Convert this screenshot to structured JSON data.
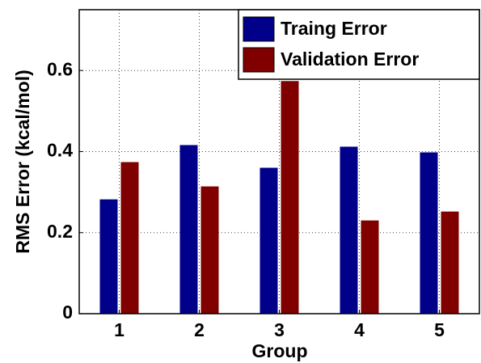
{
  "chart_data": {
    "type": "bar",
    "xlabel": "Group",
    "ylabel": "RMS Error (kcal/mol)",
    "categories": [
      "1",
      "2",
      "3",
      "4",
      "5"
    ],
    "series": [
      {
        "name": "Traing Error",
        "color": "#00008b",
        "values": [
          0.282,
          0.416,
          0.36,
          0.412,
          0.398
        ]
      },
      {
        "name": "Validation Error",
        "color": "#800000",
        "values": [
          0.374,
          0.314,
          0.574,
          0.23,
          0.252
        ]
      }
    ],
    "ylim": [
      0,
      0.75
    ],
    "yticks": [
      0,
      0.2,
      0.4,
      0.6
    ],
    "grid": true,
    "legend": "upper right"
  }
}
